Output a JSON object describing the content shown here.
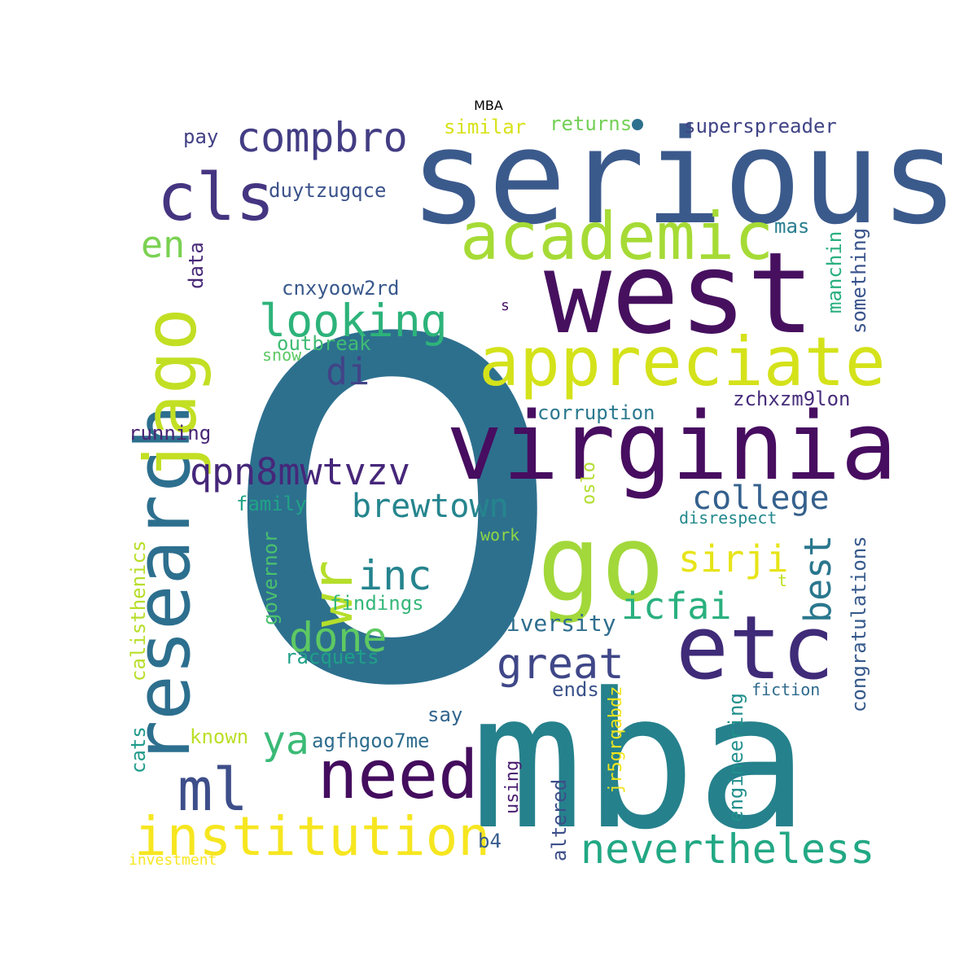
{
  "chart_data": {
    "type": "wordcloud",
    "title": "MBA",
    "words": [
      {
        "text": "o",
        "color": "#2d708e"
      },
      {
        "text": "serious",
        "color": "#3b5a8c"
      },
      {
        "text": "west",
        "color": "#46105f"
      },
      {
        "text": "virginia",
        "color": "#470d60"
      },
      {
        "text": "mba",
        "color": "#25818c"
      },
      {
        "text": "go",
        "color": "#a2d83a"
      },
      {
        "text": "etc",
        "color": "#3f2b78"
      },
      {
        "text": "appreciate",
        "color": "#d4e21a"
      },
      {
        "text": "academic",
        "color": "#a6db36"
      },
      {
        "text": "cls",
        "color": "#453581"
      },
      {
        "text": "research",
        "color": "#2d6f8e"
      },
      {
        "text": "jago",
        "color": "#c2df23"
      },
      {
        "text": "institution",
        "color": "#f6e620"
      },
      {
        "text": "need",
        "color": "#440d5e"
      },
      {
        "text": "compbro",
        "color": "#433d84"
      },
      {
        "text": "ml",
        "color": "#3d4e8a"
      },
      {
        "text": "nevertheless",
        "color": "#22a884"
      },
      {
        "text": "wr",
        "color": "#b5de2b"
      },
      {
        "text": "looking",
        "color": "#2db37a"
      },
      {
        "text": "qpn8mwtvzv",
        "color": "#46277a"
      },
      {
        "text": "inc",
        "color": "#25848e"
      },
      {
        "text": "done",
        "color": "#5ec962"
      },
      {
        "text": "great",
        "color": "#3f4788"
      },
      {
        "text": "brewtown",
        "color": "#25858e"
      },
      {
        "text": "college",
        "color": "#35608d"
      },
      {
        "text": "icfai",
        "color": "#2ab07f"
      },
      {
        "text": "en",
        "color": "#7ad151"
      },
      {
        "text": "di",
        "color": "#414487"
      },
      {
        "text": "ya",
        "color": "#3aba76"
      },
      {
        "text": "sirji",
        "color": "#e7e419"
      },
      {
        "text": "best",
        "color": "#2a778e"
      },
      {
        "text": "university",
        "color": "#2e6e8e"
      },
      {
        "text": "superspreader",
        "color": "#414487"
      },
      {
        "text": "similar",
        "color": "#d8e219"
      },
      {
        "text": "returns",
        "color": "#73d056"
      },
      {
        "text": "pay",
        "color": "#424086"
      },
      {
        "text": "duytzugqce",
        "color": "#3b528b"
      },
      {
        "text": "cnxyoow2rd",
        "color": "#38588c"
      },
      {
        "text": "outbreak",
        "color": "#3fbc73"
      },
      {
        "text": "snow",
        "color": "#5cc863"
      },
      {
        "text": "corruption",
        "color": "#2a788e"
      },
      {
        "text": "zchxzm9lon",
        "color": "#472d7b"
      },
      {
        "text": "running",
        "color": "#482475"
      },
      {
        "text": "family",
        "color": "#20a386"
      },
      {
        "text": "mas",
        "color": "#287d8e"
      },
      {
        "text": "manchin",
        "color": "#29af7f"
      },
      {
        "text": "something",
        "color": "#3a548c"
      },
      {
        "text": "data",
        "color": "#482878"
      },
      {
        "text": "s",
        "color": "#481467"
      },
      {
        "text": "disrespect",
        "color": "#23898e"
      },
      {
        "text": "congratulations",
        "color": "#375a8c"
      },
      {
        "text": "work",
        "color": "#8fd744"
      },
      {
        "text": "oslo",
        "color": "#b2dd2d"
      },
      {
        "text": "t",
        "color": "#bddf26"
      },
      {
        "text": "governor",
        "color": "#4ac16d"
      },
      {
        "text": "calisthenics",
        "color": "#b8de29"
      },
      {
        "text": "findings",
        "color": "#35b779"
      },
      {
        "text": "racquets",
        "color": "#1fa088"
      },
      {
        "text": "ends",
        "color": "#3b528b"
      },
      {
        "text": "say",
        "color": "#32658e"
      },
      {
        "text": "agfhgoo7me",
        "color": "#2e6d8e"
      },
      {
        "text": "known",
        "color": "#bbdf27"
      },
      {
        "text": "cats",
        "color": "#1f9a8a"
      },
      {
        "text": "jr5grqabdz",
        "color": "#f1e51d"
      },
      {
        "text": "using",
        "color": "#481c6e"
      },
      {
        "text": "altered",
        "color": "#3d4e8a"
      },
      {
        "text": "engineering",
        "color": "#21908d"
      },
      {
        "text": "fiction",
        "color": "#2f6b8e"
      },
      {
        "text": "b4",
        "color": "#365c8d"
      },
      {
        "text": "investment",
        "color": "#f8e621"
      }
    ]
  }
}
